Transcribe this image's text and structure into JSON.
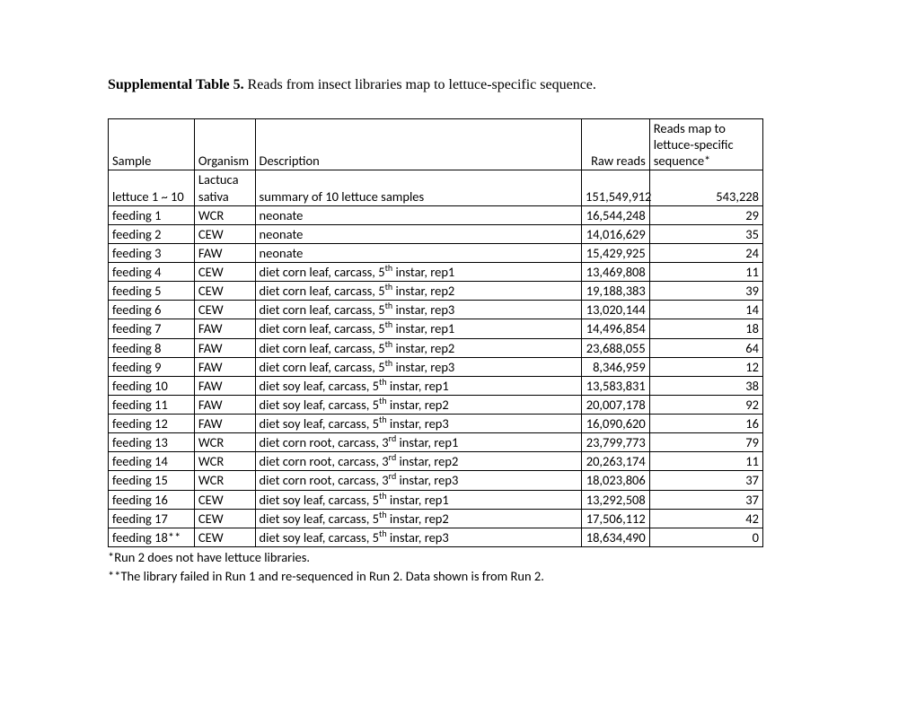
{
  "title": {
    "bold": "Supplemental Table 5.",
    "rest": "  Reads from insect libraries map to lettuce-specific sequence."
  },
  "headers": {
    "sample": "Sample",
    "organism": "Organism",
    "description": "Description",
    "raw": "Raw reads",
    "mapped": "Reads map to lettuce-specific sequence*"
  },
  "rows": [
    {
      "sample": "lettuce 1 ~ 10",
      "organism": "Lactuca sativa",
      "desc_pre": "summary of 10 lettuce samples",
      "sup": "",
      "desc_post": "",
      "raw": "151,549,912",
      "mapped": "543,228"
    },
    {
      "sample": "feeding 1",
      "organism": "WCR",
      "desc_pre": "neonate",
      "sup": "",
      "desc_post": "",
      "raw": "16,544,248",
      "mapped": "29"
    },
    {
      "sample": "feeding 2",
      "organism": "CEW",
      "desc_pre": "neonate",
      "sup": "",
      "desc_post": "",
      "raw": "14,016,629",
      "mapped": "35"
    },
    {
      "sample": "feeding 3",
      "organism": "FAW",
      "desc_pre": "neonate",
      "sup": "",
      "desc_post": "",
      "raw": "15,429,925",
      "mapped": "24"
    },
    {
      "sample": "feeding 4",
      "organism": "CEW",
      "desc_pre": "diet corn leaf, carcass, 5",
      "sup": "th",
      "desc_post": " instar, rep1",
      "raw": "13,469,808",
      "mapped": "11"
    },
    {
      "sample": "feeding 5",
      "organism": "CEW",
      "desc_pre": "diet corn leaf, carcass, 5",
      "sup": "th",
      "desc_post": " instar, rep2",
      "raw": "19,188,383",
      "mapped": "39"
    },
    {
      "sample": "feeding 6",
      "organism": "CEW",
      "desc_pre": "diet corn leaf, carcass, 5",
      "sup": "th",
      "desc_post": " instar, rep3",
      "raw": "13,020,144",
      "mapped": "14"
    },
    {
      "sample": "feeding 7",
      "organism": "FAW",
      "desc_pre": "diet corn leaf, carcass, 5",
      "sup": "th",
      "desc_post": " instar, rep1",
      "raw": "14,496,854",
      "mapped": "18"
    },
    {
      "sample": "feeding 8",
      "organism": "FAW",
      "desc_pre": "diet corn leaf, carcass, 5",
      "sup": "th",
      "desc_post": " instar, rep2",
      "raw": "23,688,055",
      "mapped": "64"
    },
    {
      "sample": "feeding 9",
      "organism": "FAW",
      "desc_pre": "diet corn leaf, carcass, 5",
      "sup": "th",
      "desc_post": " instar, rep3",
      "raw": "8,346,959",
      "mapped": "12"
    },
    {
      "sample": "feeding 10",
      "organism": "FAW",
      "desc_pre": "diet soy leaf, carcass, 5",
      "sup": "th",
      "desc_post": " instar, rep1",
      "raw": "13,583,831",
      "mapped": "38"
    },
    {
      "sample": "feeding 11",
      "organism": "FAW",
      "desc_pre": "diet soy leaf, carcass, 5",
      "sup": "th",
      "desc_post": " instar, rep2",
      "raw": "20,007,178",
      "mapped": "92"
    },
    {
      "sample": "feeding 12",
      "organism": "FAW",
      "desc_pre": "diet soy leaf, carcass, 5",
      "sup": "th",
      "desc_post": " instar, rep3",
      "raw": "16,090,620",
      "mapped": "16"
    },
    {
      "sample": "feeding 13",
      "organism": "WCR",
      "desc_pre": "diet corn root, carcass, 3",
      "sup": "rd",
      "desc_post": " instar, rep1",
      "raw": "23,799,773",
      "mapped": "79"
    },
    {
      "sample": "feeding 14",
      "organism": "WCR",
      "desc_pre": "diet corn root, carcass, 3",
      "sup": "rd",
      "desc_post": " instar, rep2",
      "raw": "20,263,174",
      "mapped": "11"
    },
    {
      "sample": "feeding 15",
      "organism": "WCR",
      "desc_pre": "diet corn root, carcass, 3",
      "sup": "rd",
      "desc_post": " instar, rep3",
      "raw": "18,023,806",
      "mapped": "37"
    },
    {
      "sample": "feeding 16",
      "organism": "CEW",
      "desc_pre": "diet soy leaf, carcass, 5",
      "sup": "th",
      "desc_post": " instar, rep1",
      "raw": "13,292,508",
      "mapped": "37"
    },
    {
      "sample": "feeding 17",
      "organism": "CEW",
      "desc_pre": "diet soy leaf, carcass, 5",
      "sup": "th",
      "desc_post": " instar, rep2",
      "raw": "17,506,112",
      "mapped": "42"
    },
    {
      "sample": "feeding 18**",
      "organism": "CEW",
      "desc_pre": "diet soy leaf, carcass, 5",
      "sup": "th",
      "desc_post": " instar, rep3",
      "raw": "18,634,490",
      "mapped": "0"
    }
  ],
  "footnotes": {
    "a": "*Run 2 does not have lettuce libraries.",
    "b": "**The library failed in Run 1 and re-sequenced in Run 2. Data shown is from Run 2."
  }
}
